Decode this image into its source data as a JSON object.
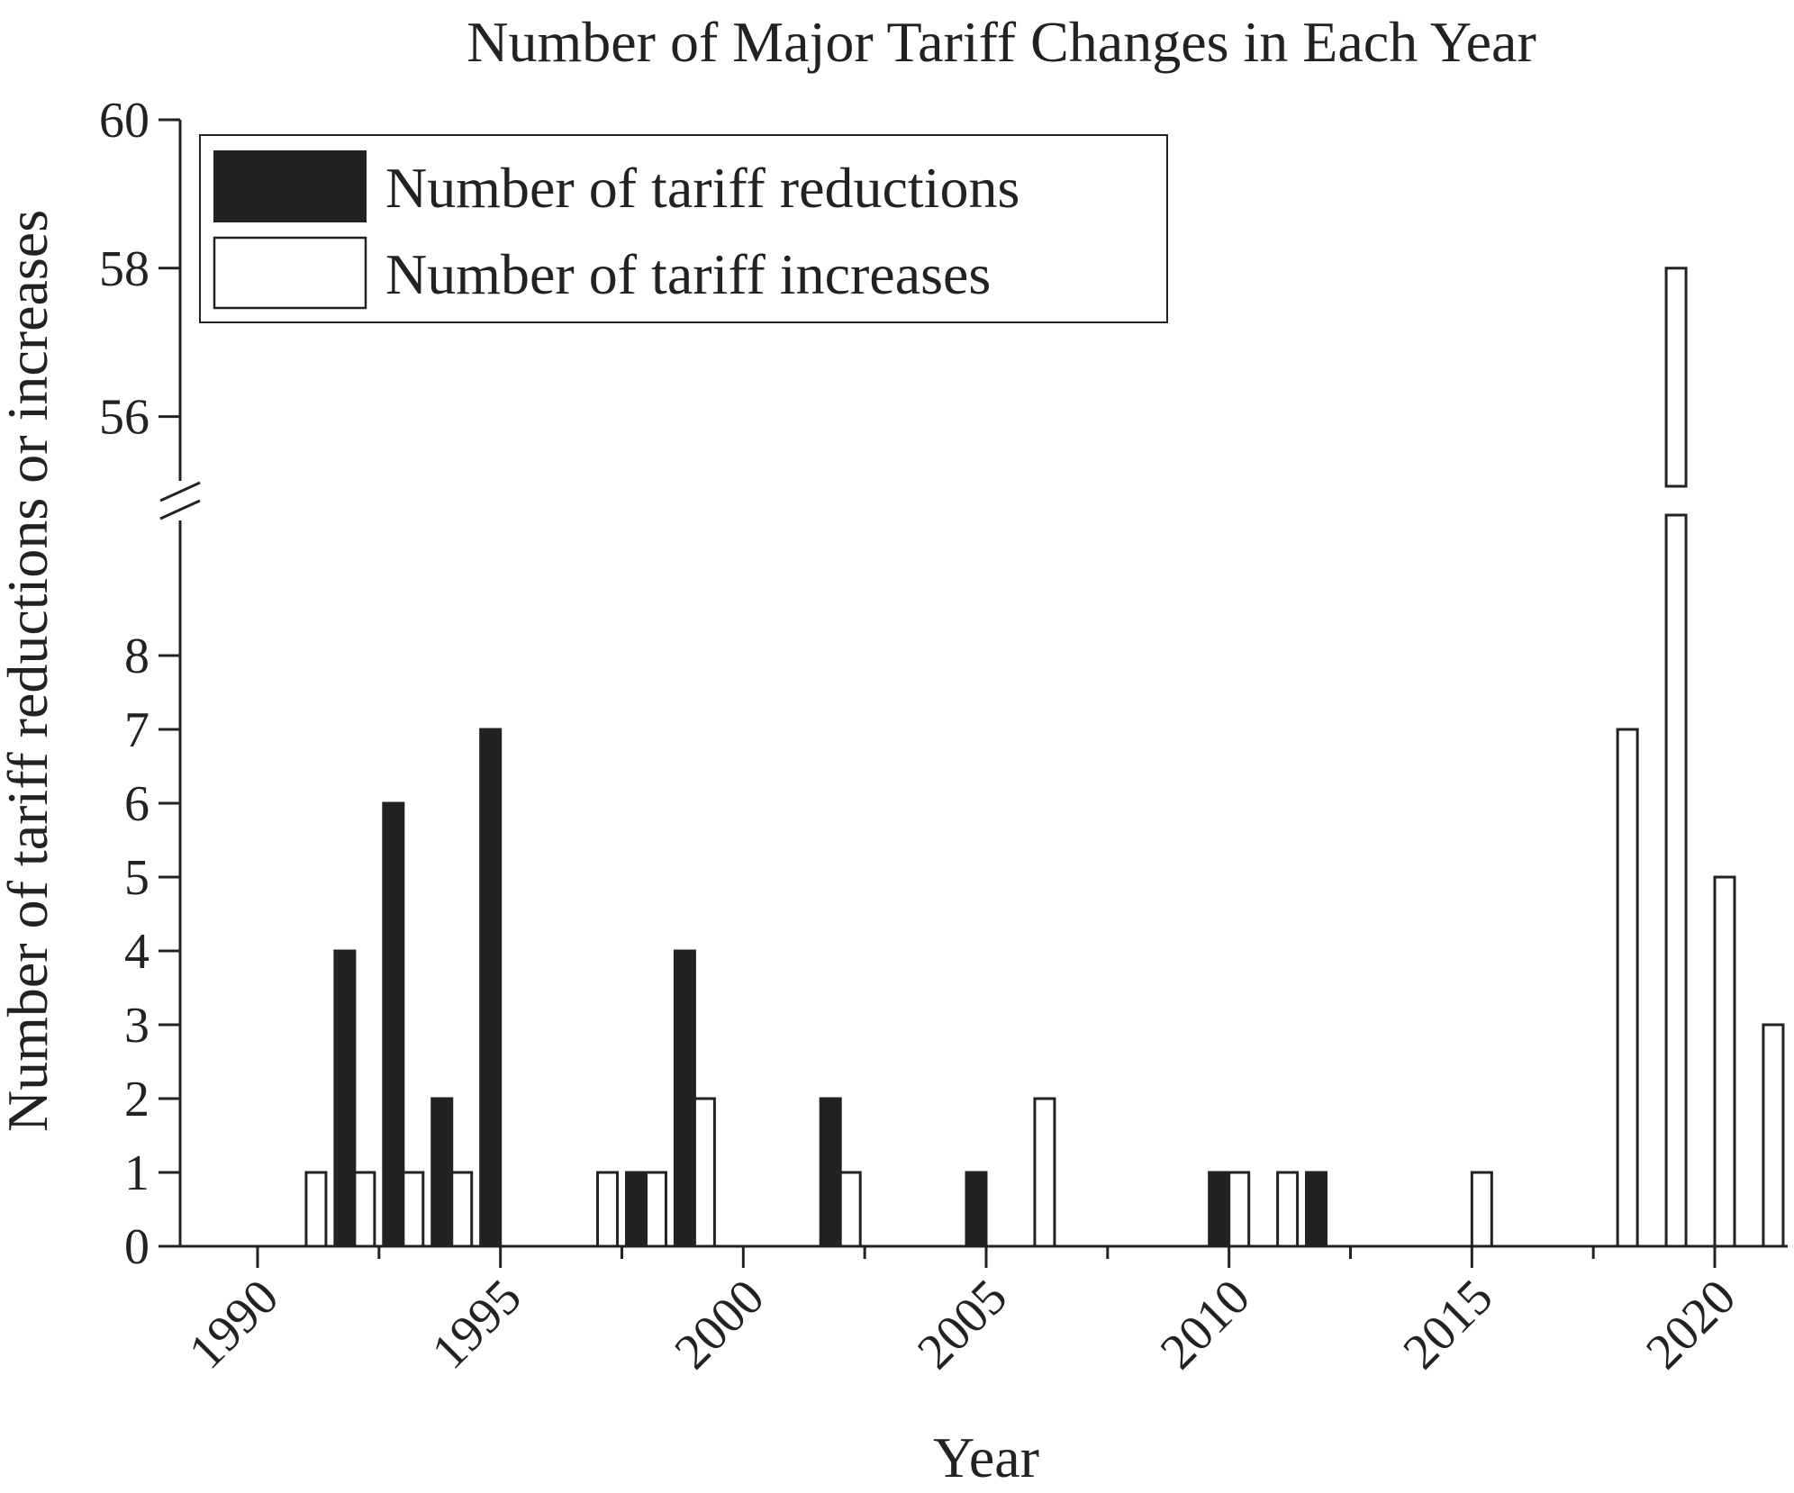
{
  "chart_data": {
    "type": "bar",
    "title": "Number of Major Tariff Changes in Each Year",
    "xlabel": "Year",
    "ylabel": "Number of tariff reductions or increases",
    "x_ticks": [
      1990,
      1995,
      2000,
      2005,
      2010,
      2015,
      2020
    ],
    "y_ticks_lower": [
      0,
      1,
      2,
      3,
      4,
      5,
      6,
      7,
      8
    ],
    "y_ticks_upper": [
      56,
      58,
      60
    ],
    "ylim_lower": [
      0,
      8
    ],
    "ylim_upper": [
      55,
      60
    ],
    "axis_break": true,
    "grid": false,
    "legend_position": "top-left",
    "colors": {
      "reductions": "#222222",
      "increases": "#ffffff",
      "outline": "#222222"
    },
    "series": [
      {
        "name": "Number of tariff reductions",
        "key": "reductions",
        "points": [
          {
            "x": 1992,
            "y": 4
          },
          {
            "x": 1993,
            "y": 6
          },
          {
            "x": 1994,
            "y": 2
          },
          {
            "x": 1995,
            "y": 7
          },
          {
            "x": 1998,
            "y": 1
          },
          {
            "x": 1999,
            "y": 4
          },
          {
            "x": 2002,
            "y": 2
          },
          {
            "x": 2005,
            "y": 1
          },
          {
            "x": 2010,
            "y": 1
          },
          {
            "x": 2012,
            "y": 1
          }
        ]
      },
      {
        "name": "Number of tariff increases",
        "key": "increases",
        "points": [
          {
            "x": 1991,
            "y": 1
          },
          {
            "x": 1992,
            "y": 1
          },
          {
            "x": 1993,
            "y": 1
          },
          {
            "x": 1994,
            "y": 1
          },
          {
            "x": 1997,
            "y": 1
          },
          {
            "x": 1998,
            "y": 1
          },
          {
            "x": 1999,
            "y": 2
          },
          {
            "x": 2002,
            "y": 1
          },
          {
            "x": 2006,
            "y": 2
          },
          {
            "x": 2010,
            "y": 1
          },
          {
            "x": 2011,
            "y": 1
          },
          {
            "x": 2015,
            "y": 1
          },
          {
            "x": 2018,
            "y": 7
          },
          {
            "x": 2019,
            "y": 58
          },
          {
            "x": 2020,
            "y": 5
          },
          {
            "x": 2021,
            "y": 3
          }
        ]
      }
    ]
  }
}
